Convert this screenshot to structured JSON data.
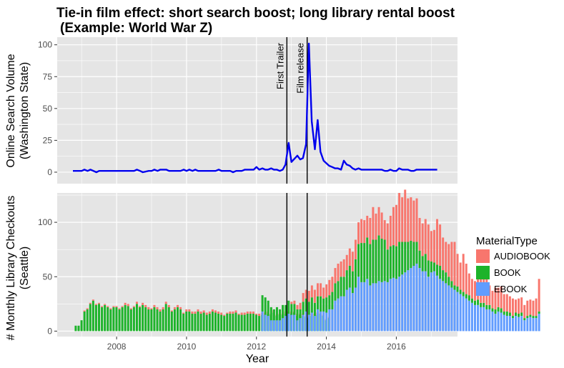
{
  "chart_data": {
    "title_line1": "Tie-in film effect: short search boost; long library rental boost",
    "title_line2": "(Example: World War Z)",
    "xlabel": "Year",
    "xlim": [
      2006.3,
      2017.75
    ],
    "x_ticks": [
      2008,
      2010,
      2012,
      2014,
      2016
    ],
    "x_tick_labels": [
      "2008",
      "2010",
      "2012",
      "2014",
      "2016"
    ],
    "annotations": [
      {
        "label": "First Trailer",
        "x": 2012.87
      },
      {
        "label": "Film release",
        "x": 2013.45
      }
    ],
    "panels": [
      {
        "type": "line",
        "ylabel_line1": "Online Search Volume",
        "ylabel_line2": "(Washington State)",
        "ylim": [
          -9,
          106
        ],
        "y_ticks": [
          0,
          25,
          50,
          75,
          100
        ],
        "y_tick_labels": [
          "0",
          "25",
          "50",
          "75",
          "100"
        ],
        "series": [
          {
            "color": "#0000ee",
            "points": [
              [
                2006.75,
                1
              ],
              [
                2007.0,
                1
              ],
              [
                2007.08,
                2
              ],
              [
                2007.17,
                1
              ],
              [
                2007.25,
                2
              ],
              [
                2007.42,
                0
              ],
              [
                2007.5,
                1
              ],
              [
                2008.5,
                1
              ],
              [
                2008.58,
                2
              ],
              [
                2008.67,
                1
              ],
              [
                2008.75,
                0
              ],
              [
                2008.92,
                1
              ],
              [
                2009.0,
                1
              ],
              [
                2009.08,
                2
              ],
              [
                2009.17,
                1
              ],
              [
                2009.25,
                2
              ],
              [
                2009.42,
                2
              ],
              [
                2009.5,
                1
              ],
              [
                2009.83,
                1
              ],
              [
                2009.92,
                2
              ],
              [
                2010.0,
                1
              ],
              [
                2010.08,
                2
              ],
              [
                2010.17,
                1
              ],
              [
                2010.25,
                2
              ],
              [
                2010.33,
                1
              ],
              [
                2010.5,
                1
              ],
              [
                2010.83,
                1
              ],
              [
                2010.92,
                2
              ],
              [
                2011.0,
                1
              ],
              [
                2011.25,
                1
              ],
              [
                2011.33,
                0
              ],
              [
                2011.42,
                1
              ],
              [
                2011.58,
                1
              ],
              [
                2011.67,
                2
              ],
              [
                2011.75,
                2
              ],
              [
                2011.83,
                2
              ],
              [
                2011.92,
                2
              ],
              [
                2012.0,
                4
              ],
              [
                2012.08,
                2
              ],
              [
                2012.17,
                3
              ],
              [
                2012.25,
                2
              ],
              [
                2012.33,
                2
              ],
              [
                2012.42,
                3
              ],
              [
                2012.5,
                2
              ],
              [
                2012.58,
                2
              ],
              [
                2012.67,
                1
              ],
              [
                2012.75,
                2
              ],
              [
                2012.83,
                6
              ],
              [
                2012.92,
                23
              ],
              [
                2013.0,
                8
              ],
              [
                2013.17,
                13
              ],
              [
                2013.25,
                10
              ],
              [
                2013.33,
                11
              ],
              [
                2013.42,
                22
              ],
              [
                2013.5,
                101
              ],
              [
                2013.58,
                40
              ],
              [
                2013.67,
                18
              ],
              [
                2013.75,
                41
              ],
              [
                2013.83,
                16
              ],
              [
                2013.92,
                9
              ],
              [
                2014.0,
                7
              ],
              [
                2014.08,
                5
              ],
              [
                2014.17,
                4
              ],
              [
                2014.25,
                3
              ],
              [
                2014.33,
                3
              ],
              [
                2014.42,
                2
              ],
              [
                2014.5,
                9
              ],
              [
                2014.58,
                6
              ],
              [
                2014.67,
                5
              ],
              [
                2014.75,
                3
              ],
              [
                2014.83,
                2
              ],
              [
                2014.92,
                3
              ],
              [
                2015.0,
                2
              ],
              [
                2015.5,
                2
              ],
              [
                2015.58,
                2
              ],
              [
                2015.67,
                1
              ],
              [
                2015.75,
                1
              ],
              [
                2015.83,
                2
              ],
              [
                2015.92,
                1
              ],
              [
                2016.0,
                1
              ],
              [
                2016.08,
                3
              ],
              [
                2016.17,
                2
              ],
              [
                2016.25,
                2
              ],
              [
                2016.33,
                2
              ],
              [
                2016.42,
                1
              ],
              [
                2016.5,
                1
              ],
              [
                2016.58,
                2
              ],
              [
                2016.67,
                2
              ],
              [
                2016.75,
                2
              ],
              [
                2016.83,
                2
              ],
              [
                2016.92,
                2
              ],
              [
                2017.08,
                2
              ],
              [
                2017.17,
                2
              ]
            ]
          }
        ]
      },
      {
        "type": "stacked-bar",
        "ylabel_line1": "# Monthly Library Checkouts",
        "ylabel_line2": "(Seattle)",
        "ylim": [
          -5,
          127
        ],
        "y_ticks": [
          0,
          50,
          100
        ],
        "y_tick_labels": [
          "0",
          "50",
          "100"
        ],
        "x_start": 2006.83,
        "bar_step": 0.0833,
        "series_order": [
          "EBOOK",
          "BOOK",
          "AUDIOBOOK"
        ],
        "segments": [
          {
            "start": 2006.83,
            "ebook": [],
            "book": [
              5,
              5,
              10,
              18,
              20,
              25,
              28,
              24,
              25,
              22,
              24,
              22,
              20,
              22,
              22,
              20,
              22,
              24,
              23,
              20,
              22,
              25,
              22,
              24,
              22,
              20,
              20,
              22,
              20,
              18,
              20,
              25,
              22,
              18,
              20,
              22,
              20,
              16,
              18,
              18,
              16,
              16,
              18,
              16,
              17,
              15,
              16,
              18,
              17,
              16,
              15,
              14,
              16,
              16,
              16,
              17,
              15,
              15,
              15,
              16,
              16,
              16,
              15,
              14,
              15,
              15,
              16,
              15,
              17,
              14,
              15,
              15,
              16,
              16,
              16,
              17,
              14,
              15,
              14,
              13,
              12,
              14,
              14,
              15,
              16,
              14,
              10,
              12
            ],
            "audio": [
              0,
              0,
              0,
              1,
              1,
              1,
              1,
              1,
              1,
              1,
              1,
              1,
              1,
              1,
              1,
              1,
              1,
              2,
              2,
              1,
              1,
              2,
              1,
              2,
              2,
              2,
              1,
              2,
              2,
              2,
              2,
              2,
              2,
              1,
              2,
              2,
              2,
              1,
              2,
              2,
              2,
              2,
              2,
              2,
              2,
              2,
              2,
              2,
              2,
              2,
              2,
              1,
              1,
              2,
              2,
              2,
              1,
              2,
              2,
              2,
              2,
              2,
              1,
              2,
              2,
              2,
              2,
              1,
              2,
              1,
              1,
              1,
              2,
              2,
              2,
              1,
              2,
              1,
              2,
              1,
              1,
              2,
              2,
              2,
              2,
              1,
              1,
              1
            ]
          },
          {
            "start": 2012.17,
            "ebook": [
              18,
              15,
              14,
              10,
              10,
              10,
              10,
              12,
              14,
              16,
              15,
              15,
              10,
              12,
              15,
              18,
              15,
              17,
              14,
              20,
              18,
              18,
              17,
              20,
              20,
              28,
              30,
              32,
              32,
              38,
              40,
              35,
              40,
              50,
              45,
              45,
              48,
              42,
              44,
              44,
              46,
              45,
              46,
              45,
              48,
              49,
              48,
              50,
              52,
              54,
              56,
              58,
              60,
              62,
              58,
              55,
              55,
              50,
              54,
              55,
              51,
              48,
              46,
              44,
              42,
              40,
              38,
              36,
              34,
              32,
              30,
              28,
              26,
              24,
              24,
              22,
              22,
              20,
              20,
              18,
              16,
              18,
              17,
              15,
              14,
              14,
              12,
              14,
              13,
              14,
              10,
              12,
              13,
              12,
              12,
              16
            ],
            "book": [
              15,
              16,
              14,
              12,
              10,
              12,
              10,
              12,
              10,
              12,
              10,
              10,
              10,
              8,
              12,
              12,
              12,
              14,
              12,
              12,
              14,
              12,
              14,
              13,
              16,
              16,
              16,
              18,
              18,
              18,
              20,
              20,
              26,
              30,
              36,
              36,
              38,
              38,
              40,
              40,
              42,
              40,
              38,
              30,
              30,
              30,
              30,
              32,
              30,
              28,
              26,
              25,
              22,
              20,
              16,
              14,
              16,
              15,
              10,
              8,
              10,
              12,
              10,
              10,
              8,
              6,
              4,
              5,
              4,
              4,
              4,
              5,
              4,
              4,
              5,
              4,
              4,
              4,
              4,
              3,
              4,
              4,
              4,
              3,
              4,
              3,
              2,
              3,
              3,
              3,
              2,
              2,
              2,
              2,
              2,
              2
            ],
            "audio": [
              0,
              0,
              0,
              0,
              0,
              0,
              0,
              0,
              0,
              0,
              2,
              3,
              4,
              6,
              8,
              8,
              10,
              11,
              12,
              12,
              12,
              10,
              12,
              14,
              14,
              14,
              16,
              14,
              16,
              14,
              16,
              18,
              18,
              20,
              22,
              21,
              20,
              24,
              30,
              24,
              26,
              24,
              18,
              24,
              28,
              35,
              38,
              45,
              41,
              48,
              40,
              40,
              38,
              40,
              30,
              30,
              32,
              33,
              28,
              30,
              42,
              38,
              30,
              28,
              30,
              36,
              40,
              30,
              25,
              35,
              28,
              20,
              18,
              18,
              20,
              22,
              22,
              24,
              18,
              16,
              20,
              18,
              20,
              16,
              16,
              15,
              16,
              12,
              14,
              14,
              12,
              14,
              14,
              14,
              16,
              30
            ]
          }
        ],
        "stack_colors": {
          "EBOOK": "#619cff",
          "BOOK": "#1db32a",
          "AUDIOBOOK": "#f8766d"
        }
      }
    ],
    "legend": {
      "title": "MaterialType",
      "position": "right",
      "items": [
        {
          "label": "AUDIOBOOK",
          "color": "#f8766d"
        },
        {
          "label": "BOOK",
          "color": "#1db32a"
        },
        {
          "label": "EBOOK",
          "color": "#619cff"
        }
      ]
    },
    "colors": {
      "panel_background": "#e5e5e5",
      "gridline": "#ffffff",
      "tick_text": "#4d4d4d",
      "line": "#0000ee",
      "vline": "#000000"
    },
    "grid": true
  }
}
